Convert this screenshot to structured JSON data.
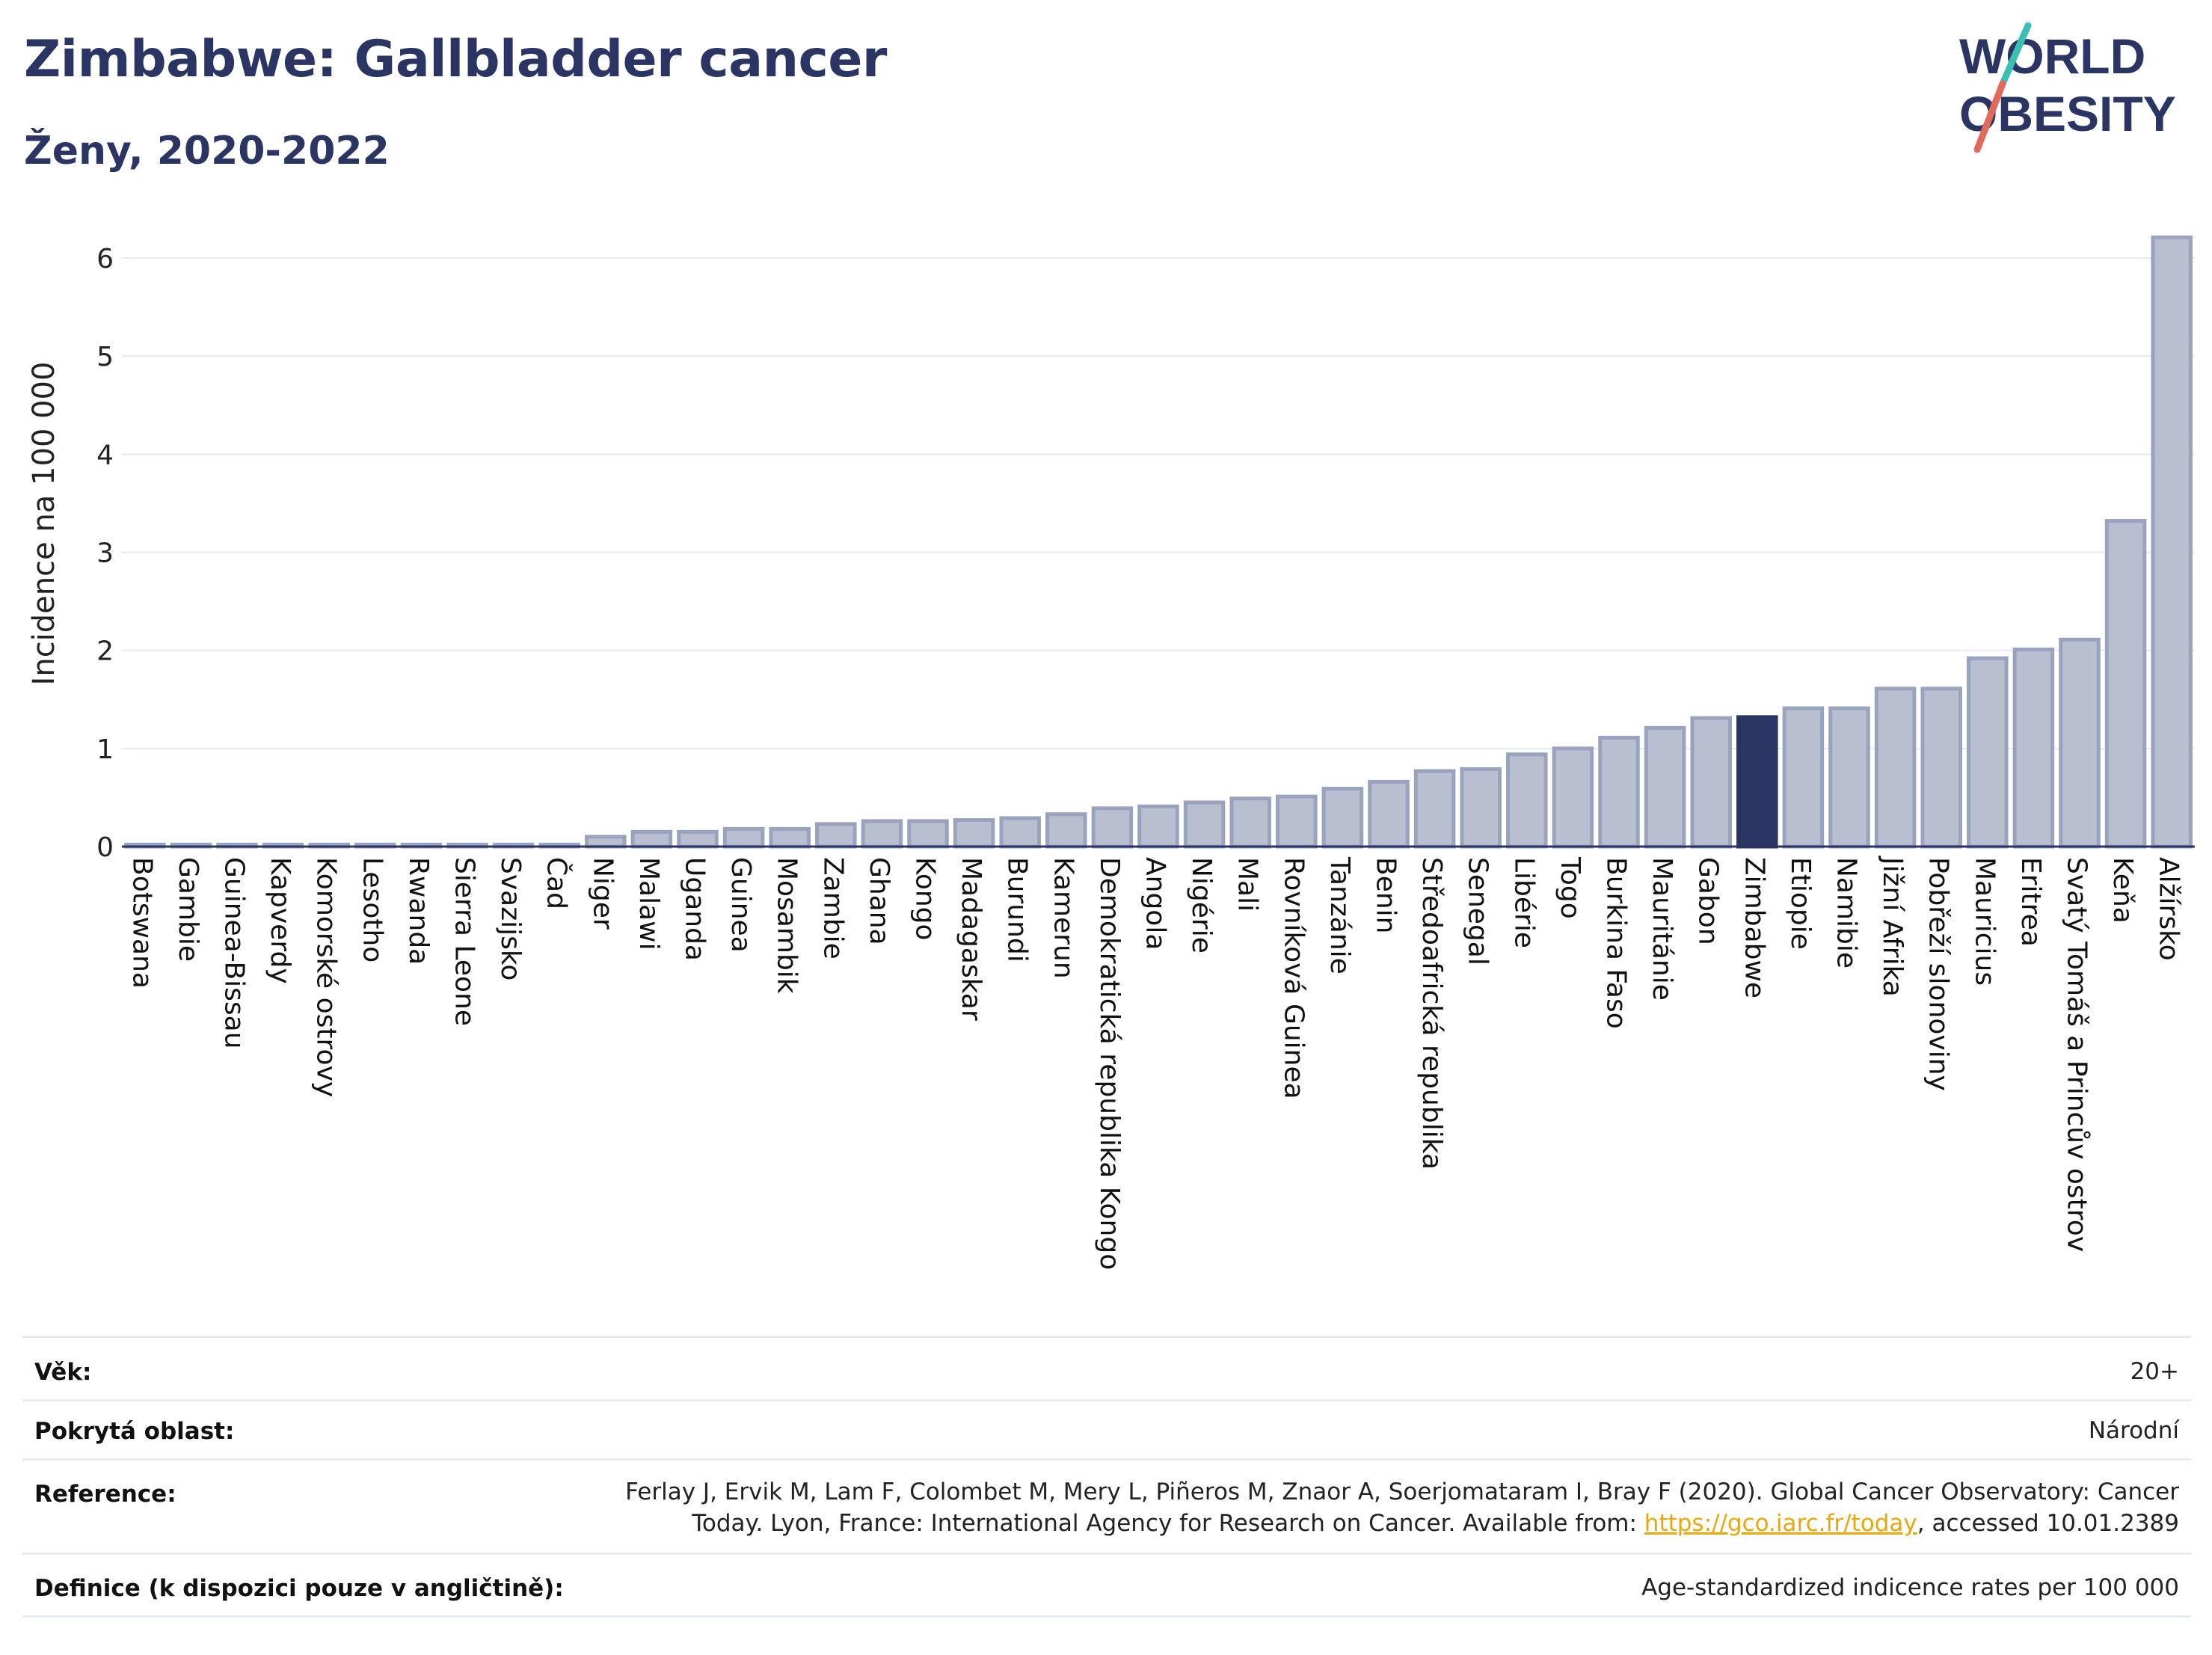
{
  "header": {
    "title": "Zimbabwe: Gallbladder cancer",
    "subtitle": "Ženy, 2020-2022"
  },
  "logo": {
    "line1": "WORLD",
    "line2": "OBESITY",
    "colors": {
      "text": "#2a3563",
      "slash_top": "#3bbfb3",
      "slash_bottom": "#e26a5a"
    }
  },
  "chart_data": {
    "type": "bar",
    "ylabel": "Incidence na 100 000",
    "ylim": [
      0,
      6.5
    ],
    "yticks": [
      0,
      1,
      2,
      3,
      4,
      5,
      6
    ],
    "grid": true,
    "highlight": "Zimbabwe",
    "colors": {
      "bar": "#b9bfd0",
      "bar_edge": "#9aa3bd",
      "highlight": "#2a3563"
    },
    "categories": [
      "Botswana",
      "Gambie",
      "Guinea-Bissau",
      "Kapverdy",
      "Komorské ostrovy",
      "Lesotho",
      "Rwanda",
      "Sierra Leone",
      "Svazijsko",
      "Čad",
      "Niger",
      "Malawi",
      "Uganda",
      "Guinea",
      "Mosambik",
      "Zambie",
      "Ghana",
      "Kongo",
      "Madagaskar",
      "Burundi",
      "Kamerun",
      "Demokratická republika Kongo",
      "Angola",
      "Nigérie",
      "Mali",
      "Rovníková Guinea",
      "Tanzánie",
      "Benin",
      "Středoafrická republika",
      "Senegal",
      "Libérie",
      "Togo",
      "Burkina Faso",
      "Mauritánie",
      "Gabon",
      "Zimbabwe",
      "Etiopie",
      "Namibie",
      "Jižní Afrika",
      "Pobřeží slonoviny",
      "Mauricius",
      "Eritrea",
      "Svatý Tomáš a Princův ostrov",
      "Keňa",
      "Alžírsko"
    ],
    "values": [
      0.02,
      0.02,
      0.02,
      0.02,
      0.02,
      0.02,
      0.02,
      0.02,
      0.02,
      0.02,
      0.1,
      0.15,
      0.15,
      0.18,
      0.18,
      0.23,
      0.26,
      0.26,
      0.27,
      0.29,
      0.33,
      0.39,
      0.41,
      0.45,
      0.49,
      0.51,
      0.59,
      0.66,
      0.77,
      0.79,
      0.94,
      1.0,
      1.11,
      1.21,
      1.31,
      1.32,
      1.41,
      1.41,
      1.61,
      1.61,
      1.92,
      2.01,
      2.11,
      3.32,
      6.21
    ]
  },
  "meta": {
    "age_label": "Věk:",
    "age_value": "20+",
    "area_label": "Pokrytá oblast:",
    "area_value": "Národní",
    "reference_label": "Reference:",
    "reference_line1": "Ferlay J, Ervik M, Lam F, Colombet M, Mery L, Piñeros M, Znaor A, Soerjomataram I, Bray F (2020). Global Cancer Observatory: Cancer",
    "reference_line2_prefix": "Today. Lyon, France: International Agency for Research on Cancer. Available from: ",
    "reference_link": "https://gco.iarc.fr/today",
    "reference_line2_suffix": ", accessed 10.01.2389",
    "definition_label": "Definice (k dispozici pouze v angličtině):",
    "definition_value": "Age-standardized indicence rates per 100 000"
  }
}
